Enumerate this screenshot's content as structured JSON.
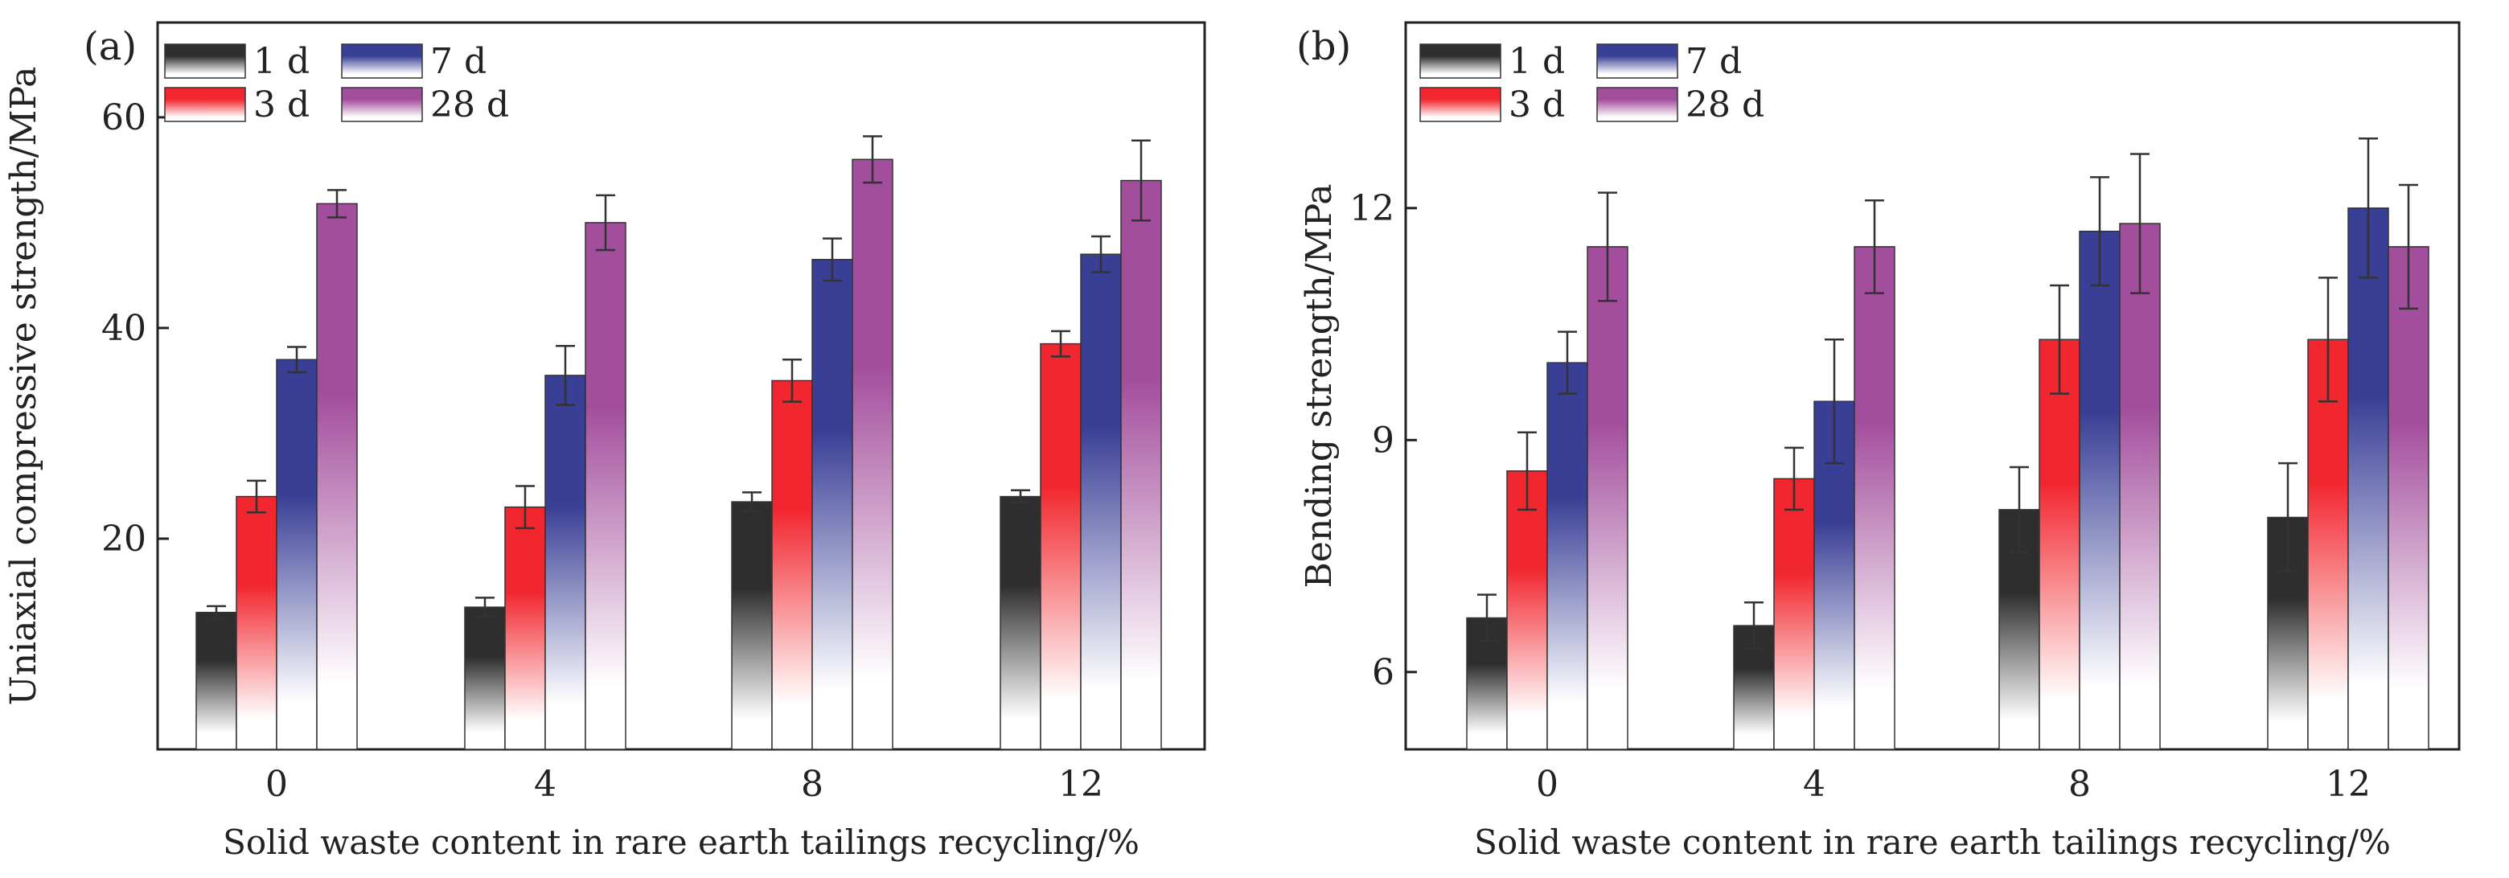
{
  "series_colors": [
    "#2e2e2e",
    "#f2262e",
    "#3a3f96",
    "#a34e9c"
  ],
  "chart_data": [
    {
      "type": "bar",
      "panel_label": "(a)",
      "xlabel": "Solid waste content in rare earth tailings recycling/%",
      "ylabel": "Uniaxial compressive strength/MPa",
      "categories": [
        "0",
        "4",
        "8",
        "12"
      ],
      "ylim": [
        0,
        69
      ],
      "yticks": [
        20,
        40,
        60
      ],
      "grid": false,
      "legend_placement": "top-left",
      "series": [
        {
          "name": "1 d",
          "values": [
            13.0,
            13.5,
            23.5,
            24.0
          ],
          "errors": [
            0.6,
            0.9,
            0.9,
            0.6
          ]
        },
        {
          "name": "3 d",
          "values": [
            24.0,
            23.0,
            35.0,
            38.5
          ],
          "errors": [
            1.5,
            2.0,
            2.0,
            1.2
          ]
        },
        {
          "name": "7 d",
          "values": [
            37.0,
            35.5,
            46.5,
            47.0
          ],
          "errors": [
            1.2,
            2.8,
            2.0,
            1.7
          ]
        },
        {
          "name": "28 d",
          "values": [
            51.8,
            50.0,
            56.0,
            54.0
          ],
          "errors": [
            1.3,
            2.6,
            2.2,
            3.8
          ]
        }
      ]
    },
    {
      "type": "bar",
      "panel_label": "(b)",
      "xlabel": "Solid waste content in rare earth tailings recycling/%",
      "ylabel": "Bending strength/MPa",
      "categories": [
        "0",
        "4",
        "8",
        "12"
      ],
      "ylim": [
        5.0,
        14.4
      ],
      "yticks": [
        6,
        9,
        12
      ],
      "grid": false,
      "legend_placement": "top-left",
      "series": [
        {
          "name": "1 d",
          "values": [
            6.7,
            6.6,
            8.1,
            8.0
          ],
          "errors": [
            0.3,
            0.3,
            0.55,
            0.7
          ]
        },
        {
          "name": "3 d",
          "values": [
            8.6,
            8.5,
            10.3,
            10.3
          ],
          "errors": [
            0.5,
            0.4,
            0.7,
            0.8
          ]
        },
        {
          "name": "7 d",
          "values": [
            10.0,
            9.5,
            11.7,
            12.0
          ],
          "errors": [
            0.4,
            0.8,
            0.7,
            0.9
          ]
        },
        {
          "name": "28 d",
          "values": [
            11.5,
            11.5,
            11.8,
            11.5
          ],
          "errors": [
            0.7,
            0.6,
            0.9,
            0.8
          ]
        }
      ]
    }
  ]
}
